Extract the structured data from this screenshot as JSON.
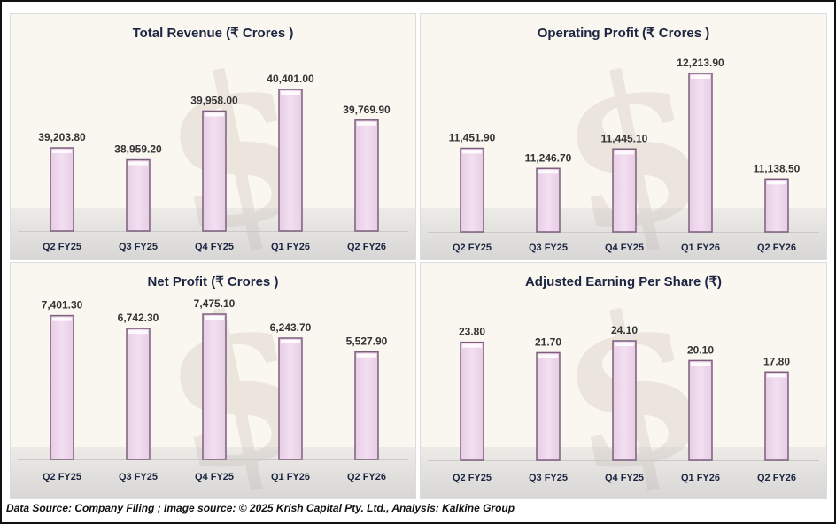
{
  "footer": {
    "text": "Data Source: Company Filing ; Image source: © 2025 Krish Capital Pty. Ltd., Analysis: Kalkine Group"
  },
  "colors": {
    "bar_fill": "#f3dff1",
    "bar_stroke": "#7d5f7d",
    "title": "#1c2541",
    "label": "#333333",
    "axis_label": "#1c2541"
  },
  "chart_data": [
    {
      "type": "bar",
      "title": "Total Revenue (₹ Crores )",
      "categories": [
        "Q2 FY25",
        "Q3 FY25",
        "Q4 FY25",
        "Q1 FY26",
        "Q2 FY26"
      ],
      "values": [
        39203.8,
        38959.2,
        39958.0,
        40401.0,
        39769.9
      ],
      "labels": [
        "39,203.80",
        "38,959.20",
        "39,958.00",
        "40,401.00",
        "39,769.90"
      ],
      "xlabel": "",
      "ylabel": "",
      "ylim": [
        37500,
        40800
      ]
    },
    {
      "type": "bar",
      "title": "Operating Profit (₹ Crores )",
      "categories": [
        "Q2 FY25",
        "Q3 FY25",
        "Q4 FY25",
        "Q1 FY26",
        "Q2 FY26"
      ],
      "values": [
        11451.9,
        11246.7,
        11445.1,
        12213.9,
        11138.5
      ],
      "labels": [
        "11,451.90",
        "11,246.70",
        "11,445.10",
        "12,213.90",
        "11,138.50"
      ],
      "xlabel": "",
      "ylabel": "",
      "ylim": [
        10600,
        12300
      ]
    },
    {
      "type": "bar",
      "title": "Net Profit (₹ Crores )",
      "categories": [
        "Q2 FY25",
        "Q3 FY25",
        "Q4 FY25",
        "Q1 FY26",
        "Q2 FY26"
      ],
      "values": [
        7401.3,
        6742.3,
        7475.1,
        6243.7,
        5527.9
      ],
      "labels": [
        "7,401.30",
        "6,742.30",
        "7,475.10",
        "6,243.70",
        "5,527.90"
      ],
      "xlabel": "",
      "ylabel": "",
      "ylim": [
        0,
        7600
      ]
    },
    {
      "type": "bar",
      "title": "Adjusted Earning Per Share (₹)",
      "categories": [
        "Q2 FY25",
        "Q3 FY25",
        "Q4 FY25",
        "Q1 FY26",
        "Q2 FY26"
      ],
      "values": [
        23.8,
        21.7,
        24.1,
        20.1,
        17.8
      ],
      "labels": [
        "23.80",
        "21.70",
        "24.10",
        "20.10",
        "17.80"
      ],
      "xlabel": "",
      "ylabel": "",
      "ylim": [
        0,
        27
      ]
    }
  ]
}
